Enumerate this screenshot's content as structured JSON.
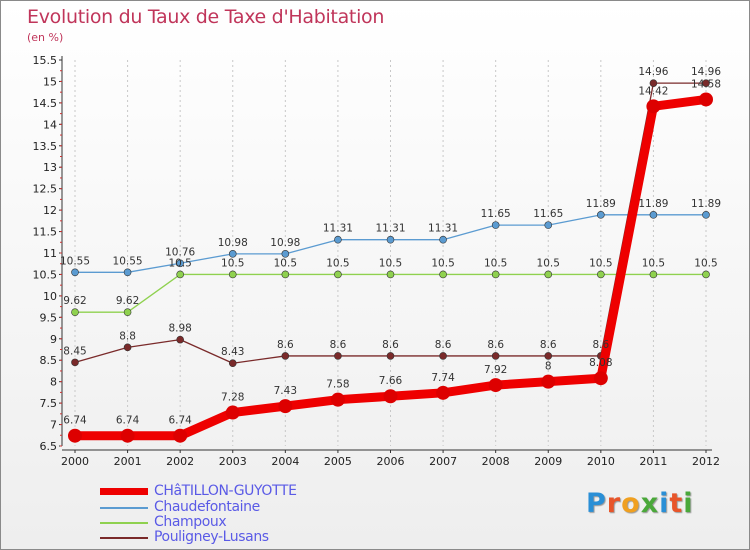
{
  "header": {
    "title": "Evolution du Taux de Taxe d'Habitation",
    "subtitle": "(en %)"
  },
  "logo": {
    "text": "Proxiti",
    "colors": [
      "#2a8fd6",
      "#e8552a",
      "#f0a020",
      "#4aa83a",
      "#2a8fd6",
      "#e8552a",
      "#4aa83a"
    ]
  },
  "chart_data": {
    "type": "line",
    "title": "Evolution du Taux de Taxe d'Habitation",
    "ylabel": "(en %)",
    "xlabel": "",
    "ylim": [
      6.5,
      15.5
    ],
    "ytick_step": 0.5,
    "yticks": [
      "6.5",
      "7",
      "7.5",
      "8",
      "8.5",
      "9",
      "9.5",
      "10",
      "10.5",
      "11",
      "11.5",
      "12",
      "12.5",
      "13",
      "13.5",
      "14",
      "14.5",
      "15",
      "15.5"
    ],
    "categories": [
      "2000",
      "2001",
      "2002",
      "2003",
      "2004",
      "2005",
      "2006",
      "2007",
      "2008",
      "2009",
      "2010",
      "2011",
      "2012"
    ],
    "grid": "vertical",
    "legend_position": "bottom-left",
    "series": [
      {
        "name": "Chaudefontaine",
        "color": "#5b9bd1",
        "values": [
          10.55,
          10.55,
          10.76,
          10.98,
          10.98,
          11.31,
          11.31,
          11.31,
          11.65,
          11.65,
          11.89,
          11.89,
          11.89
        ],
        "labels": [
          "10.55",
          "10.55",
          "10.76",
          "10.98",
          "10.98",
          "11.31",
          "11.31",
          "11.31",
          "11.65",
          "11.65",
          "11.89",
          "11.89",
          "11.89"
        ]
      },
      {
        "name": "Champoux",
        "color": "#8fd14f",
        "values": [
          9.62,
          9.62,
          10.5,
          10.5,
          10.5,
          10.5,
          10.5,
          10.5,
          10.5,
          10.5,
          10.5,
          10.5,
          10.5
        ],
        "labels": [
          "9.62",
          "9.62",
          "10.5",
          "10.5",
          "10.5",
          "10.5",
          "10.5",
          "10.5",
          "10.5",
          "10.5",
          "10.5",
          "10.5",
          "10.5"
        ]
      },
      {
        "name": "Pouligney-Lusans",
        "color": "#7a2a2a",
        "values": [
          8.45,
          8.8,
          8.98,
          8.43,
          8.6,
          8.6,
          8.6,
          8.6,
          8.6,
          8.6,
          8.6,
          14.96,
          14.96
        ],
        "labels": [
          "8.45",
          "8.8",
          "8.98",
          "8.43",
          "8.6",
          "8.6",
          "8.6",
          "8.6",
          "8.6",
          "8.6",
          "8.6",
          "14.96",
          "14.96"
        ]
      },
      {
        "name": "CHâTILLON-GUYOTTE",
        "color": "#ee0000",
        "values": [
          6.74,
          6.74,
          6.74,
          7.28,
          7.43,
          7.58,
          7.66,
          7.74,
          7.92,
          8,
          8.08,
          14.42,
          14.58
        ],
        "labels": [
          "6.74",
          "6.74",
          "6.74",
          "7.28",
          "7.43",
          "7.58",
          "7.66",
          "7.74",
          "7.92",
          "8",
          "8.08",
          "14.42",
          "14.58"
        ]
      }
    ],
    "legend": [
      "CHâTILLON-GUYOTTE",
      "Chaudefontaine",
      "Champoux",
      "Pouligney-Lusans"
    ]
  }
}
